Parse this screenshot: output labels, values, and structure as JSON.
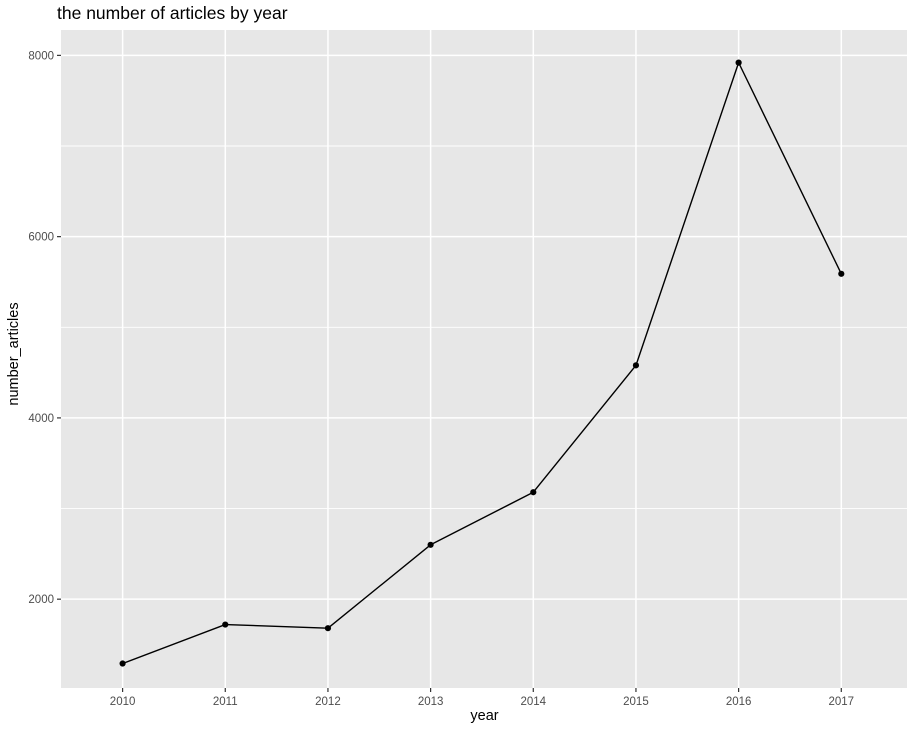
{
  "chart_data": {
    "type": "line",
    "title": "the number of articles by year",
    "xlabel": "year",
    "ylabel": "number_articles",
    "x": [
      2010,
      2011,
      2012,
      2013,
      2014,
      2015,
      2016,
      2017
    ],
    "values": [
      1290,
      1720,
      1680,
      2600,
      3180,
      4580,
      7920,
      5590
    ],
    "x_ticks": [
      2010,
      2011,
      2012,
      2013,
      2014,
      2015,
      2016,
      2017
    ],
    "y_ticks": [
      2000,
      4000,
      6000,
      8000
    ],
    "y_minor_gridlines": [
      3000,
      5000,
      7000
    ],
    "xlim": [
      2009.4,
      2017.64
    ],
    "ylim": [
      1020,
      8280
    ],
    "grid": true,
    "legend": "none",
    "colors": {
      "line": "#000000",
      "point": "#000000",
      "panel_background": "#E7E7E7",
      "gridline": "#FFFFFF",
      "tick_label": "#4D4D4D",
      "tick_mark": "#333333",
      "title_text": "#000000"
    }
  }
}
